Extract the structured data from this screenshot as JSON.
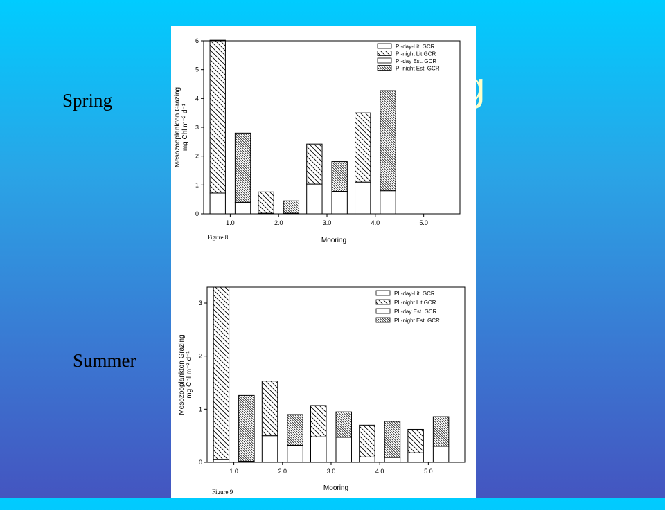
{
  "slide": {
    "title_fragment": "g",
    "spring_label": "Spring",
    "summer_label": "Summer"
  },
  "chart_data": [
    {
      "type": "bar",
      "stacked": true,
      "figure_label": "Figure 8",
      "xlabel": "Mooring",
      "ylabel_line1": "Mesozooplankton Grazing",
      "ylabel_line2": "mg Chl m⁻² d⁻¹",
      "ylim": [
        0,
        6
      ],
      "xlim": [
        0.45,
        5.75
      ],
      "yticks": [
        "0",
        "1",
        "2",
        "3",
        "4",
        "5",
        "6"
      ],
      "xticks": [
        "1.0",
        "2.0",
        "3.0",
        "4.0",
        "5.0"
      ],
      "legend": [
        "PI-day-Lit. GCR",
        "PI-night Lit GCR",
        "PI-day Est. GCR",
        "PI-night Est. GCR"
      ],
      "legend_position": "top-right",
      "groups": [
        {
          "x": 1.0,
          "lit_day": 0.72,
          "lit_night": 5.3,
          "est_day": 0.4,
          "est_night": 2.4
        },
        {
          "x": 2.0,
          "lit_day": 0.02,
          "lit_night": 0.74,
          "est_day": 0.02,
          "est_night": 0.43
        },
        {
          "x": 3.0,
          "lit_day": 1.03,
          "lit_night": 1.39,
          "est_day": 0.78,
          "est_night": 1.03
        },
        {
          "x": 4.0,
          "lit_day": 1.1,
          "lit_night": 2.4,
          "est_day": 0.8,
          "est_night": 3.47
        }
      ]
    },
    {
      "type": "bar",
      "stacked": true,
      "figure_label": "Figure 9",
      "xlabel": "Mooring",
      "ylabel_line1": "Mesozooplankton Grazing",
      "ylabel_line2": "mg Chl m⁻² d⁻¹",
      "ylim": [
        0,
        3.3
      ],
      "xlim": [
        0.45,
        5.75
      ],
      "yticks": [
        "0",
        "1",
        "2",
        "3"
      ],
      "xticks": [
        "1.0",
        "2.0",
        "3.0",
        "4.0",
        "5.0"
      ],
      "legend": [
        "PII-day-Lit. GCR",
        "PII-night Lit GCR",
        "PII-day Est. GCR",
        "PII-night Est. GCR"
      ],
      "legend_position": "top-right",
      "groups": [
        {
          "x": 1.0,
          "lit_day": 0.05,
          "lit_night": 3.25,
          "est_day": 0.02,
          "est_night": 1.24
        },
        {
          "x": 2.0,
          "lit_day": 0.5,
          "lit_night": 1.03,
          "est_day": 0.32,
          "est_night": 0.58
        },
        {
          "x": 3.0,
          "lit_day": 0.48,
          "lit_night": 0.59,
          "est_day": 0.47,
          "est_night": 0.48
        },
        {
          "x": 4.0,
          "lit_day": 0.1,
          "lit_night": 0.6,
          "est_day": 0.09,
          "est_night": 0.68
        },
        {
          "x": 5.0,
          "lit_day": 0.18,
          "lit_night": 0.44,
          "est_day": 0.3,
          "est_night": 0.56
        }
      ]
    }
  ]
}
